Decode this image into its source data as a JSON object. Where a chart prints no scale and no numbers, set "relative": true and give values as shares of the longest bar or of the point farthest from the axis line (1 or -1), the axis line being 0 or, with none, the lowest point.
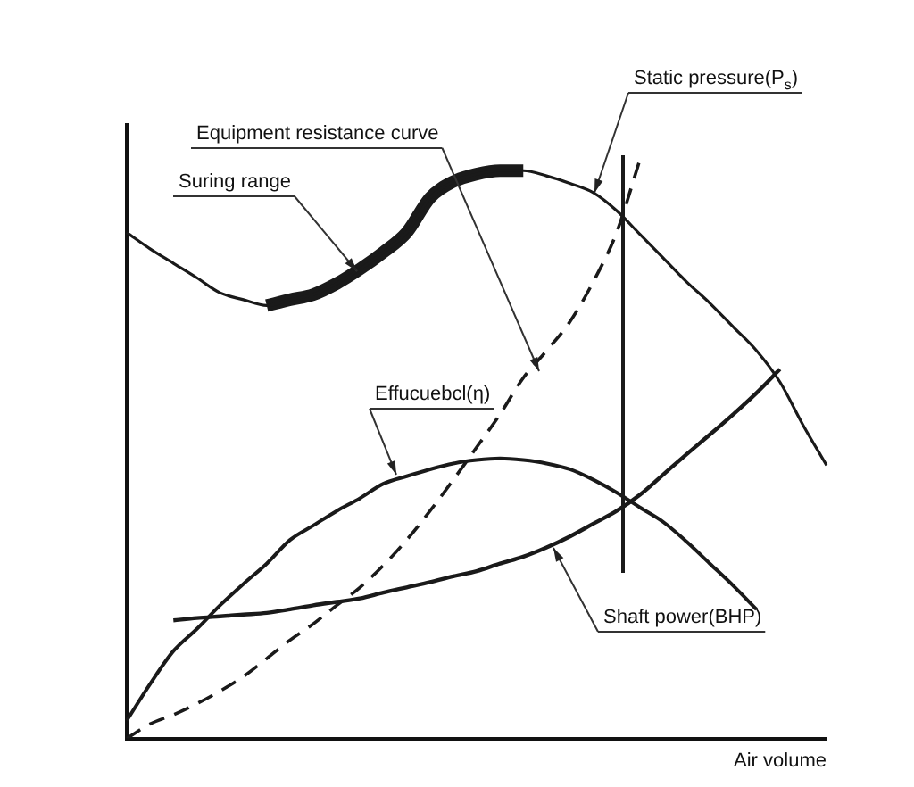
{
  "chart_data": {
    "type": "line",
    "relative": true,
    "xlabel": "Air volume",
    "grid": false,
    "legend": false,
    "marker": "none",
    "tick_labels": false,
    "categories": [
      null,
      null,
      null,
      null,
      null,
      null,
      null,
      null,
      null,
      null,
      null,
      null,
      null,
      null,
      null,
      null,
      null,
      null,
      null,
      null,
      null,
      null,
      null,
      null,
      null,
      null,
      null,
      null,
      null,
      null,
      null
    ],
    "series": [
      {
        "color": "#1a1a1a",
        "line_style": "solid",
        "values": [
          0.874,
          0.846,
          0.821,
          0.796,
          0.77,
          0.758,
          0.748,
          0.758,
          0.767,
          0.786,
          0.811,
          0.84,
          0.874,
          0.934,
          0.962,
          0.975,
          0.981,
          0.981,
          0.972,
          0.959,
          0.943,
          0.912,
          0.871,
          0.83,
          0.789,
          0.752,
          0.711,
          0.67,
          0.616,
          0.541,
          0.472
        ]
      },
      {
        "color": "#1a1a1a",
        "line_style": "solid",
        "values": [
          null,
          null,
          null,
          null,
          null,
          null,
          0.748,
          0.758,
          0.767,
          0.786,
          0.811,
          0.84,
          0.874,
          0.934,
          0.962,
          0.975,
          0.981,
          0.981,
          null,
          null,
          null,
          null,
          null,
          null,
          null,
          null,
          null,
          null,
          null,
          null,
          null
        ]
      },
      {
        "color": "#1a1a1a",
        "line_style": "dashed",
        "values": [
          0,
          0.025,
          0.041,
          0.06,
          0.082,
          0.107,
          0.138,
          0.17,
          0.198,
          0.23,
          0.261,
          0.299,
          0.343,
          0.393,
          0.447,
          0.503,
          0.56,
          0.623,
          0.67,
          0.72,
          0.789,
          0.874,
          1,
          null,
          null,
          null,
          null,
          null,
          null,
          null,
          null
        ]
      },
      {
        "color": "#1a1a1a",
        "line_style": "solid",
        "values": [
          0.031,
          0.094,
          0.151,
          0.189,
          0.23,
          0.267,
          0.302,
          0.343,
          0.368,
          0.393,
          0.415,
          0.44,
          0.453,
          0.465,
          0.475,
          0.481,
          0.484,
          0.481,
          0.475,
          0.465,
          0.447,
          0.425,
          0.399,
          0.374,
          0.34,
          0.302,
          0.264,
          0.223,
          null,
          null,
          null
        ]
      },
      {
        "color": "#1a1a1a",
        "line_style": "solid",
        "values": [
          null,
          null,
          0.204,
          0.208,
          0.211,
          0.214,
          0.217,
          0.223,
          0.23,
          0.236,
          0.242,
          0.252,
          0.261,
          0.27,
          0.28,
          0.289,
          0.302,
          0.314,
          0.33,
          0.349,
          0.371,
          0.393,
          0.421,
          0.456,
          0.491,
          0.525,
          0.56,
          0.597,
          0.638,
          null,
          null
        ]
      }
    ],
    "annotations": [
      "Static pressure(P$_{s}$)",
      "Equipment resistance curve",
      "Suring range",
      "Effucuebcl(η)",
      "Shaft power(BHP)"
    ]
  }
}
